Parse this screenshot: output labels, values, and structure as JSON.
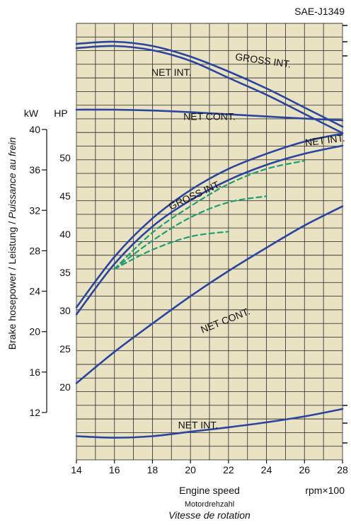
{
  "chart_data": {
    "type": "line",
    "title": "SAE-J1349",
    "xlabel": "Engine speed",
    "xlabel_de": "Motordrehzahl",
    "xlabel_fr": "Vitesse de rotation",
    "xunit": "rpm×100",
    "ylabel": "Brake hosepower / Leistung / Puissance au frein",
    "ylabel_parts": [
      "Brake hosepower / Leistung / ",
      "Puissance au frein"
    ],
    "kw_axis_label": "kW",
    "hp_axis_label": "HP",
    "x_ticks": [
      14,
      16,
      18,
      20,
      22,
      24,
      26,
      28
    ],
    "kw_ticks": [
      12,
      16,
      20,
      24,
      28,
      32,
      36,
      40
    ],
    "hp_ticks": [
      20,
      25,
      30,
      35,
      40,
      45,
      50
    ],
    "xlim": [
      14,
      28
    ],
    "grid": true,
    "colors": {
      "plot_bg": "#eae3c3",
      "grid": "#3a3a3a",
      "curve": "#2a45a0",
      "dashed": "#1e9e72",
      "text": "#111111"
    },
    "series": [
      {
        "name": "GROSS INT.",
        "group": "torque",
        "style": "solid",
        "x": [
          14,
          16,
          18,
          20,
          22,
          24,
          26,
          28
        ],
        "y": [
          115.5,
          116.0,
          115.0,
          112.5,
          109.0,
          105.0,
          100.5,
          96.0
        ]
      },
      {
        "name": "NET INT.",
        "group": "torque",
        "style": "solid",
        "x": [
          14,
          16,
          18,
          20,
          22,
          24,
          26,
          28
        ],
        "y": [
          114.5,
          115.0,
          114.0,
          111.5,
          107.5,
          103.5,
          99.0,
          94.5
        ]
      },
      {
        "name": "NET CONT.",
        "group": "torque",
        "style": "solid",
        "x": [
          14,
          16,
          18,
          20,
          22,
          24,
          26,
          28
        ],
        "y": [
          100.0,
          100.0,
          99.8,
          99.4,
          98.9,
          98.4,
          97.9,
          97.5
        ]
      },
      {
        "name": "GROSS INT.",
        "group": "power",
        "style": "solid",
        "x": [
          14,
          16,
          18,
          20,
          22,
          24,
          26,
          28
        ],
        "y": [
          22.4,
          27.4,
          31.2,
          34.0,
          36.1,
          37.6,
          38.8,
          39.6
        ]
      },
      {
        "name": "NET INT.",
        "group": "power",
        "style": "solid",
        "x": [
          14,
          16,
          18,
          20,
          22,
          24,
          26,
          28
        ],
        "y": [
          21.7,
          26.7,
          30.4,
          33.0,
          35.0,
          36.5,
          37.6,
          38.4
        ]
      },
      {
        "name": "NET CONT.",
        "group": "power",
        "style": "solid",
        "x": [
          14,
          16,
          18,
          20,
          22,
          24,
          26,
          28
        ],
        "y": [
          14.9,
          18.0,
          20.8,
          23.5,
          26.0,
          28.3,
          30.5,
          32.4
        ]
      },
      {
        "name": "NET INT.",
        "group": "fuel",
        "style": "solid",
        "x": [
          14,
          16,
          18,
          20,
          22,
          24,
          26,
          28
        ],
        "y": [
          1.5,
          1.2,
          1.5,
          2.4,
          3.3,
          4.3,
          5.5,
          7.0
        ]
      },
      {
        "name": "",
        "group": "power",
        "style": "dashed",
        "x": [
          16,
          18,
          20,
          22,
          24,
          26
        ],
        "y": [
          26.2,
          29.8,
          32.4,
          34.6,
          36.1,
          36.9
        ]
      },
      {
        "name": "",
        "group": "power",
        "style": "dashed",
        "x": [
          16,
          18,
          20,
          22,
          24
        ],
        "y": [
          26.2,
          29.0,
          31.3,
          32.8,
          33.4
        ]
      },
      {
        "name": "",
        "group": "power",
        "style": "dashed",
        "x": [
          16,
          18,
          20,
          22
        ],
        "y": [
          26.2,
          28.1,
          29.4,
          29.9
        ]
      }
    ],
    "curve_labels": [
      {
        "text": "GROSS INT.",
        "x": 23.8,
        "y": 110.8,
        "group": "torque",
        "rotate": 8
      },
      {
        "text": "NET INT.",
        "x": 19.0,
        "y": 108.0,
        "group": "torque",
        "rotate": 0
      },
      {
        "text": "NET CONT.",
        "x": 21.0,
        "y": 97.6,
        "group": "torque",
        "rotate": 0
      },
      {
        "text": "GROSS INT.",
        "x": 20.3,
        "y": 33.2,
        "group": "power",
        "rotate": -25
      },
      {
        "text": "NET INT.",
        "x": 27.1,
        "y": 38.6,
        "group": "power",
        "rotate": -7
      },
      {
        "text": "NET CONT.",
        "x": 21.9,
        "y": 20.8,
        "group": "power",
        "rotate": -22
      },
      {
        "text": "NET INT.",
        "x": 20.4,
        "y": 3.1,
        "group": "fuel",
        "rotate": 0
      }
    ]
  }
}
